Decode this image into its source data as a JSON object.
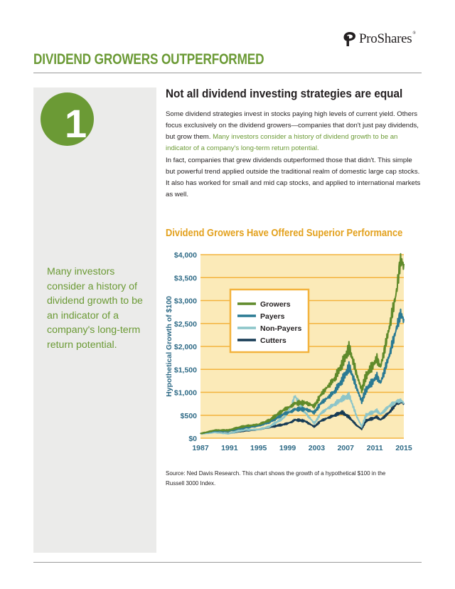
{
  "header": {
    "brand": "ProShares",
    "trademark": "®",
    "icon": "proshares-logo-icon",
    "title": "DIVIDEND GROWERS OUTPERFORMED"
  },
  "sidebar": {
    "number": "1",
    "quote": "Many investors consider a history of dividend growth to be an indicator of a company's long-term return potential."
  },
  "main": {
    "heading": "Not all dividend investing strategies are equal",
    "para1_text": "Some dividend strategies invest in stocks paying high levels of current yield. Others focus exclusively on the dividend growers—companies that don't just pay dividends, but grow them. ",
    "para1_highlight": "Many investors consider a history of dividend growth to be an indicator of a company's long-term return potential.",
    "para2": "In fact, companies that grew dividends outperformed those that didn't. This simple but powerful trend applied outside the traditional realm of domestic large cap stocks. It also has worked for small and mid cap stocks, and applied to international markets as well.",
    "source": "Source: Ned Davis Research. This chart shows the growth of a hypothetical $100 in the Russell 3000 Index."
  },
  "colors": {
    "brand_green": "#6b9a35",
    "chart_title_gold": "#e3a11d",
    "plot_background": "#fbeab8",
    "gridline_orange": "#f3b33d",
    "axis_label_blue": "#2e6a86"
  },
  "chart_data": {
    "type": "line",
    "title": "Dividend Growers Have Offered Superior Performance",
    "xlabel": "",
    "ylabel": "Hypothetical Growth of $100",
    "xlim": [
      1987,
      2015
    ],
    "ylim": [
      0,
      4000
    ],
    "x_ticks": [
      1987,
      1991,
      1995,
      1999,
      2003,
      2007,
      2011,
      2015
    ],
    "y_ticks": [
      0,
      500,
      1000,
      1500,
      2000,
      2500,
      3000,
      3500,
      4000
    ],
    "y_tick_labels": [
      "$0",
      "$500",
      "$1,000",
      "$1,500",
      "$2,000",
      "$2,500",
      "$3,000",
      "$3,500",
      "$4,000"
    ],
    "grid": "horizontal",
    "legend_position": "upper-left",
    "series": [
      {
        "name": "Growers",
        "color": "#5f8a2a",
        "x": [
          1987,
          1987.8,
          1989,
          1990.8,
          1993,
          1995,
          1996.5,
          1998.5,
          1999.5,
          2000,
          2001.3,
          2002.7,
          2003.5,
          2004.5,
          2005.5,
          2006.5,
          2007.5,
          2008.5,
          2009.2,
          2009.8,
          2011.3,
          2011.8,
          2013,
          2014,
          2014.5,
          2015
        ],
        "y": [
          100,
          130,
          175,
          175,
          260,
          300,
          390,
          620,
          700,
          760,
          780,
          700,
          930,
          1120,
          1300,
          1600,
          1960,
          1400,
          1050,
          1350,
          1730,
          1550,
          2400,
          3200,
          3850,
          3800
        ]
      },
      {
        "name": "Payers",
        "color": "#2a7a93",
        "x": [
          1987,
          1987.8,
          1989,
          1990.8,
          1993,
          1995,
          1996.5,
          1998.5,
          1999.5,
          2000,
          2001.3,
          2002.7,
          2003.5,
          2004.5,
          2005.5,
          2006.5,
          2007.5,
          2008.5,
          2009.2,
          2009.8,
          2011.3,
          2011.8,
          2013,
          2014,
          2014.5,
          2015
        ],
        "y": [
          100,
          125,
          160,
          155,
          225,
          270,
          350,
          530,
          580,
          630,
          640,
          560,
          750,
          880,
          1020,
          1250,
          1550,
          1100,
          800,
          1050,
          1350,
          1200,
          1800,
          2400,
          2700,
          2600
        ]
      },
      {
        "name": "Non-Payers",
        "color": "#8cc5c9",
        "x": [
          1987,
          1987.8,
          1989,
          1990.8,
          1993,
          1995,
          1996.5,
          1998.5,
          1999.5,
          2000,
          2001.3,
          2002.7,
          2003.5,
          2004.5,
          2005.5,
          2006.5,
          2007.5,
          2008.5,
          2009.2,
          2009.8,
          2011.3,
          2011.8,
          2013,
          2014,
          2014.5,
          2015
        ],
        "y": [
          100,
          105,
          125,
          100,
          180,
          190,
          250,
          450,
          700,
          920,
          580,
          320,
          530,
          650,
          740,
          850,
          920,
          480,
          250,
          500,
          600,
          520,
          700,
          800,
          820,
          780
        ]
      },
      {
        "name": "Cutters",
        "color": "#173b55",
        "x": [
          1987,
          1987.8,
          1989,
          1990.8,
          1993,
          1995,
          1996.5,
          1998.5,
          1999.5,
          2000,
          2001.3,
          2002.7,
          2003.5,
          2004.5,
          2005.5,
          2006.5,
          2007.5,
          2008.5,
          2009.2,
          2009.8,
          2011.3,
          2011.8,
          2013,
          2014,
          2014.5,
          2015
        ],
        "y": [
          100,
          110,
          130,
          105,
          160,
          190,
          240,
          300,
          350,
          400,
          380,
          250,
          370,
          440,
          500,
          560,
          450,
          280,
          200,
          380,
          460,
          400,
          560,
          750,
          800,
          760
        ]
      }
    ]
  }
}
